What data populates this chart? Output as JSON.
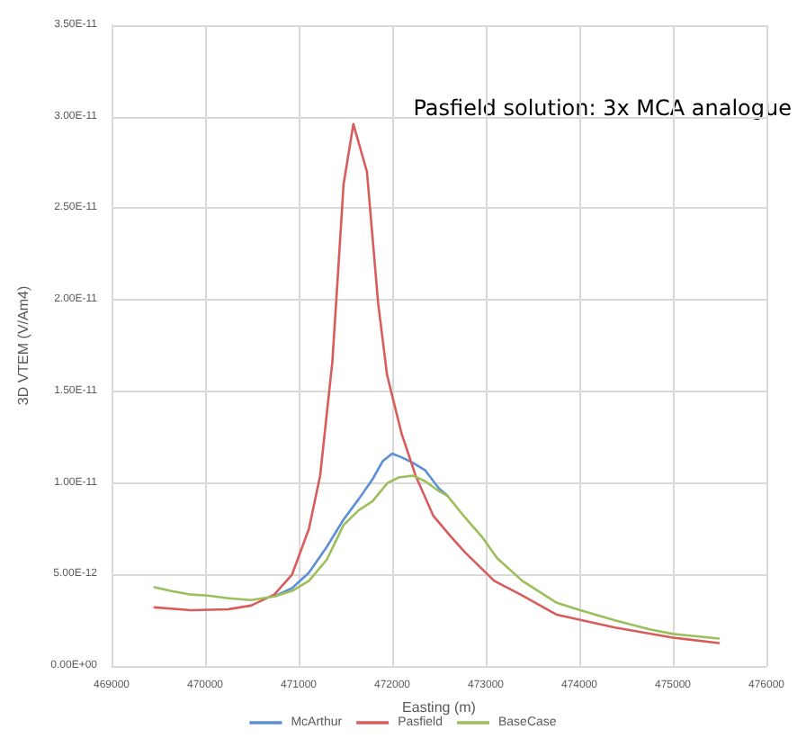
{
  "chart_data": {
    "type": "line",
    "xlabel": "Easting (m)",
    "ylabel": "3D VTEM (V/Am4)",
    "annotations": [
      "Pasfield solution: 3x MCA analogue"
    ],
    "xlim": [
      469000,
      476000
    ],
    "xticks": [
      469000,
      470000,
      471000,
      472000,
      473000,
      474000,
      475000,
      476000
    ],
    "ylim": [
      0,
      3.5e-11
    ],
    "yticks": [
      {
        "value": 0,
        "label": "0.00E+00"
      },
      {
        "value": 5e-12,
        "label": "5.00E-12"
      },
      {
        "value": 1e-11,
        "label": "1.00E-11"
      },
      {
        "value": 1.5e-11,
        "label": "1.50E-11"
      },
      {
        "value": 2e-11,
        "label": "2.00E-11"
      },
      {
        "value": 2.5e-11,
        "label": "2.50E-11"
      },
      {
        "value": 3e-11,
        "label": "3.00E-11"
      },
      {
        "value": 3.5e-11,
        "label": "3.50E-11"
      }
    ],
    "grid": true,
    "legend": "bottom",
    "marker": "none",
    "line_style": "solid",
    "series": [
      {
        "name": "McArthur",
        "color": "#5b8fd6",
        "x": [
          470740,
          470930,
          471110,
          471300,
          471480,
          471640,
          471790,
          471900,
          472000,
          472100,
          472220,
          472350,
          472500,
          472590
        ],
        "values": [
          3.8e-12,
          4.25e-12,
          5.1e-12,
          6.5e-12,
          8e-12,
          9.1e-12,
          1.02e-11,
          1.12e-11,
          1.16e-11,
          1.14e-11,
          1.11e-11,
          1.07e-11,
          9.7e-12,
          9.3e-12
        ]
      },
      {
        "name": "Pasfield",
        "color": "#d95c5c",
        "x": [
          469460,
          469850,
          470250,
          470490,
          470740,
          470930,
          471110,
          471230,
          471360,
          471420,
          471480,
          471585,
          471730,
          471850,
          471945,
          472100,
          472250,
          472440,
          472630,
          472780,
          473090,
          473390,
          473760,
          474380,
          475000,
          475490
        ],
        "values": [
          3.2e-12,
          3.05e-12,
          3.1e-12,
          3.3e-12,
          3.9e-12,
          5e-12,
          7.5e-12,
          1.04e-11,
          1.66e-11,
          2.14e-11,
          2.63e-11,
          2.96e-11,
          2.7e-11,
          1.98e-11,
          1.59e-11,
          1.27e-11,
          1.04e-11,
          8.2e-12,
          7.05e-12,
          6.2e-12,
          4.65e-12,
          3.85e-12,
          2.8e-12,
          2.1e-12,
          1.55e-12,
          1.25e-12
        ]
      },
      {
        "name": "BaseCase",
        "color": "#9bbf5a",
        "x": [
          469460,
          469630,
          469850,
          470030,
          470250,
          470490,
          470740,
          470930,
          471110,
          471300,
          471480,
          471640,
          471790,
          471950,
          472070,
          472220,
          472350,
          472500,
          472590,
          472780,
          472960,
          473120,
          473390,
          473760,
          474010,
          474380,
          474750,
          475000,
          475490
        ],
        "values": [
          4.3e-12,
          4.1e-12,
          3.9e-12,
          3.85e-12,
          3.7e-12,
          3.6e-12,
          3.8e-12,
          4.1e-12,
          4.65e-12,
          5.8e-12,
          7.7e-12,
          8.5e-12,
          9e-12,
          1e-11,
          1.03e-11,
          1.04e-11,
          1.01e-11,
          9.55e-12,
          9.3e-12,
          8.1e-12,
          7.05e-12,
          5.9e-12,
          4.65e-12,
          3.45e-12,
          3.05e-12,
          2.5e-12,
          2e-12,
          1.75e-12,
          1.5e-12
        ]
      }
    ]
  }
}
